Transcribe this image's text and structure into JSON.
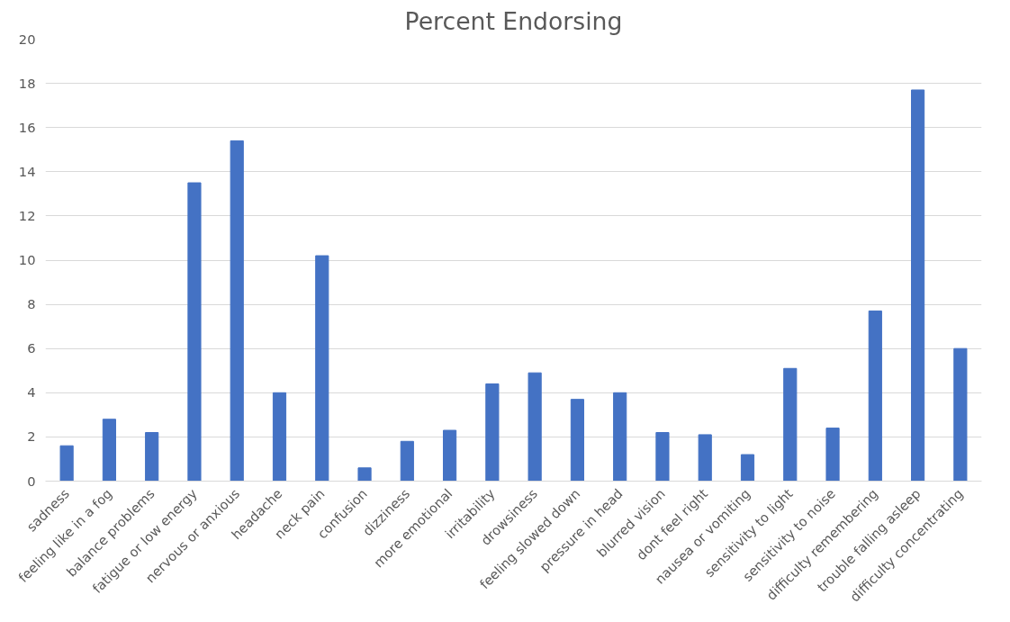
{
  "chart_data": {
    "type": "bar",
    "title": "Percent Endorsing",
    "categories": [
      "sadness",
      "feeling like in a fog",
      "balance problems",
      "fatigue or low energy",
      "nervous or anxious",
      "headache",
      "neck pain",
      "confusion",
      "dizziness",
      "more emotional",
      "irritability",
      "drowsiness",
      "feeling slowed down",
      "pressure in head",
      "blurred vision",
      "dont feel right",
      "nausea or vomiting",
      "sensitivity to light",
      "sensitivity to noise",
      "difficulty remembering",
      "trouble falling asleep",
      "difficulty concentrating"
    ],
    "values": [
      1.6,
      2.8,
      2.2,
      13.5,
      15.4,
      4.0,
      10.2,
      0.6,
      1.8,
      2.3,
      4.4,
      4.9,
      3.7,
      4.0,
      2.2,
      2.1,
      1.2,
      5.1,
      2.4,
      7.7,
      17.7,
      6.0
    ],
    "color": "#4472c4",
    "ylim": [
      0,
      20
    ],
    "yticks": [
      0,
      2,
      4,
      6,
      8,
      10,
      12,
      14,
      16,
      18,
      20
    ],
    "grid": "y"
  }
}
